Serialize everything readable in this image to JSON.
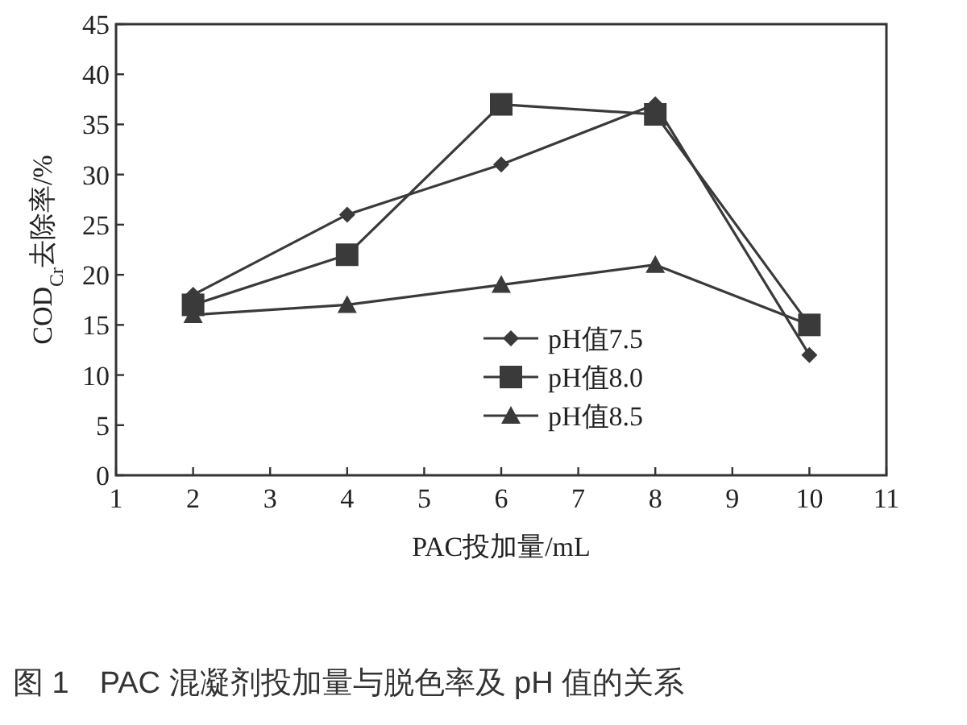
{
  "chart_data": {
    "type": "line",
    "xlabel": "PAC投加量/mL",
    "ylabel": "COD$_{Cr}$去除率/%",
    "x": [
      2,
      4,
      6,
      8,
      10
    ],
    "series": [
      {
        "name": "pH值7.5",
        "color": "#3a3a3a",
        "marker": "diamond",
        "values": [
          18,
          26,
          31,
          37,
          12
        ]
      },
      {
        "name": "pH值8.0",
        "color": "#3a3a3a",
        "marker": "square",
        "values": [
          17,
          22,
          37,
          36,
          15
        ]
      },
      {
        "name": "pH值8.5",
        "color": "#3a3a3a",
        "marker": "triangle",
        "values": [
          16,
          17,
          19,
          21,
          15
        ]
      }
    ],
    "xlim": [
      1,
      11
    ],
    "xticks": [
      1,
      2,
      3,
      4,
      5,
      6,
      7,
      8,
      9,
      10,
      11
    ],
    "ylim": [
      0,
      45
    ],
    "yticks": [
      0,
      5,
      10,
      15,
      20,
      25,
      30,
      35,
      40,
      45
    ],
    "grid": false,
    "legend": "bottom right",
    "line_style": "solid",
    "annotations": [
      "图 1　PAC 混凝剂投加量与脱色率及 pH 值的关系"
    ]
  }
}
